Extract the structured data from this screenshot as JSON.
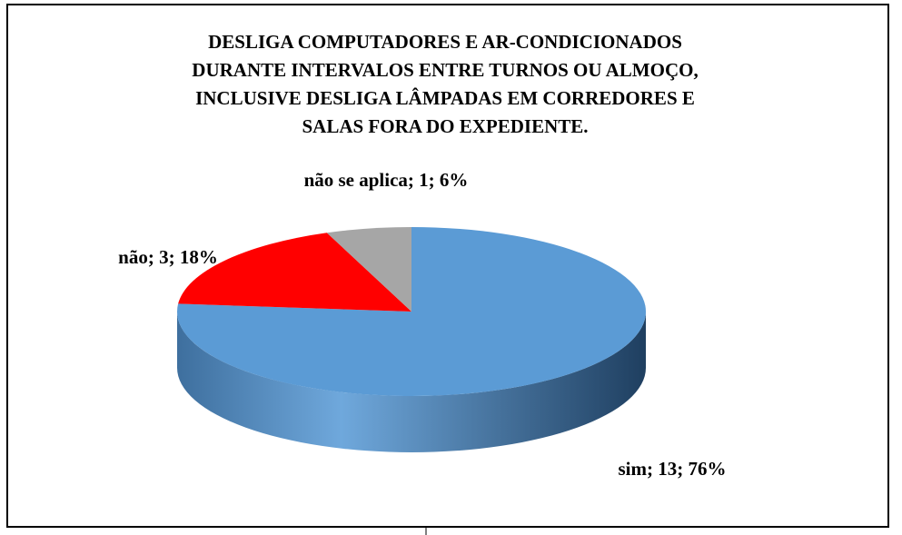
{
  "chart_data": {
    "type": "pie3d",
    "title": [
      "DESLIGA COMPUTADORES E AR-CONDICIONADOS",
      "DURANTE INTERVALOS ENTRE TURNOS OU ALMOÇO,",
      "INCLUSIVE DESLIGA LÂMPADAS EM CORREDORES E",
      "SALAS FORA DO EXPEDIENTE."
    ],
    "categories": [
      "sim",
      "não",
      "não se aplica"
    ],
    "values": [
      13,
      3,
      1
    ],
    "value_labels": [
      "sim; 13; 76%",
      "não; 3; 18%",
      "não se aplica; 1; 6%"
    ],
    "colors": [
      "#5b9bd5",
      "#ff0000",
      "#a6a6a6"
    ]
  }
}
